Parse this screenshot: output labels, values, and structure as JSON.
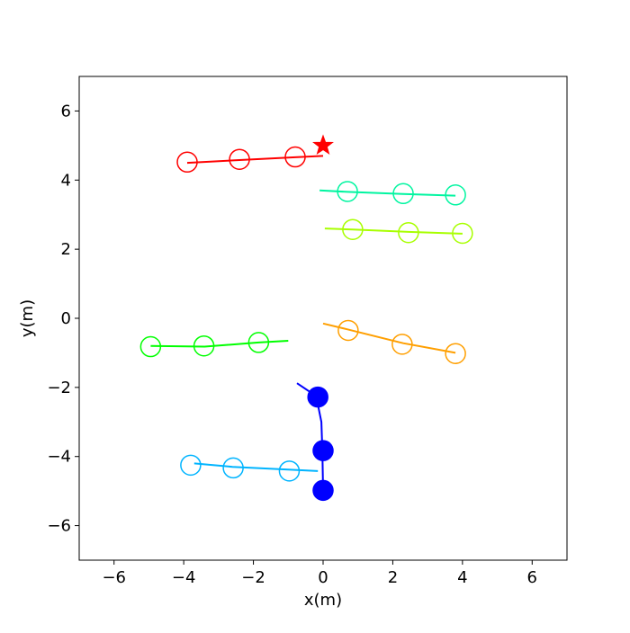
{
  "chart_data": {
    "type": "scatter",
    "xlabel": "x(m)",
    "ylabel": "y(m)",
    "xlim": [
      -7,
      7
    ],
    "ylim": [
      -7,
      7
    ],
    "xticks": [
      -6,
      -4,
      -2,
      0,
      2,
      4,
      6
    ],
    "yticks": [
      -6,
      -4,
      -2,
      0,
      2,
      4,
      6
    ],
    "xtick_labels": [
      "−6",
      "−4",
      "−2",
      "0",
      "2",
      "4",
      "6"
    ],
    "ytick_labels": [
      "−6",
      "−4",
      "−2",
      "0",
      "2",
      "4",
      "6"
    ],
    "grid": false,
    "goal": {
      "x": 0,
      "y": 5,
      "marker": "star",
      "color": "#ff0000"
    },
    "series": [
      {
        "color": "#ff0000",
        "filled": false,
        "line": [
          [
            -3.9,
            4.5
          ],
          [
            -2.4,
            4.58
          ],
          [
            -0.8,
            4.66
          ],
          [
            0,
            4.7
          ]
        ],
        "markers": [
          [
            -3.9,
            4.52
          ],
          [
            -2.4,
            4.6
          ],
          [
            -0.8,
            4.67
          ]
        ]
      },
      {
        "color": "#00f5a0",
        "filled": false,
        "line": [
          [
            -0.1,
            3.7
          ],
          [
            0.7,
            3.66
          ],
          [
            2.3,
            3.6
          ],
          [
            3.8,
            3.55
          ]
        ],
        "markers": [
          [
            0.7,
            3.67
          ],
          [
            2.3,
            3.61
          ],
          [
            3.8,
            3.57
          ]
        ]
      },
      {
        "color": "#a8ff00",
        "filled": false,
        "line": [
          [
            0.05,
            2.6
          ],
          [
            0.85,
            2.57
          ],
          [
            2.45,
            2.5
          ],
          [
            4.0,
            2.45
          ]
        ],
        "markers": [
          [
            0.85,
            2.57
          ],
          [
            2.45,
            2.48
          ],
          [
            4.0,
            2.46
          ]
        ]
      },
      {
        "color": "#ff9f00",
        "filled": false,
        "line": [
          [
            0.0,
            -0.15
          ],
          [
            0.7,
            -0.32
          ],
          [
            2.3,
            -0.72
          ],
          [
            3.8,
            -1.0
          ]
        ],
        "markers": [
          [
            0.72,
            -0.35
          ],
          [
            2.27,
            -0.75
          ],
          [
            3.8,
            -1.02
          ]
        ]
      },
      {
        "color": "#00ff00",
        "filled": false,
        "line": [
          [
            -4.95,
            -0.8
          ],
          [
            -3.4,
            -0.82
          ],
          [
            -1.85,
            -0.7
          ],
          [
            -1.0,
            -0.65
          ]
        ],
        "markers": [
          [
            -4.95,
            -0.82
          ],
          [
            -3.42,
            -0.8
          ],
          [
            -1.85,
            -0.7
          ]
        ]
      },
      {
        "color": "#0000ff",
        "filled": true,
        "line": [
          [
            -0.75,
            -1.88
          ],
          [
            -0.2,
            -2.25
          ],
          [
            -0.05,
            -3.0
          ],
          [
            -0.02,
            -3.85
          ],
          [
            0.0,
            -5.0
          ]
        ],
        "markers": [
          [
            -0.15,
            -2.28
          ],
          [
            0.0,
            -3.83
          ],
          [
            0.0,
            -4.98
          ]
        ]
      },
      {
        "color": "#00b4ff",
        "filled": false,
        "line": [
          [
            -3.7,
            -4.2
          ],
          [
            -2.6,
            -4.3
          ],
          [
            -1.0,
            -4.38
          ],
          [
            -0.15,
            -4.42
          ]
        ],
        "markers": [
          [
            -3.8,
            -4.25
          ],
          [
            -2.58,
            -4.33
          ],
          [
            -0.97,
            -4.42
          ]
        ]
      }
    ]
  }
}
